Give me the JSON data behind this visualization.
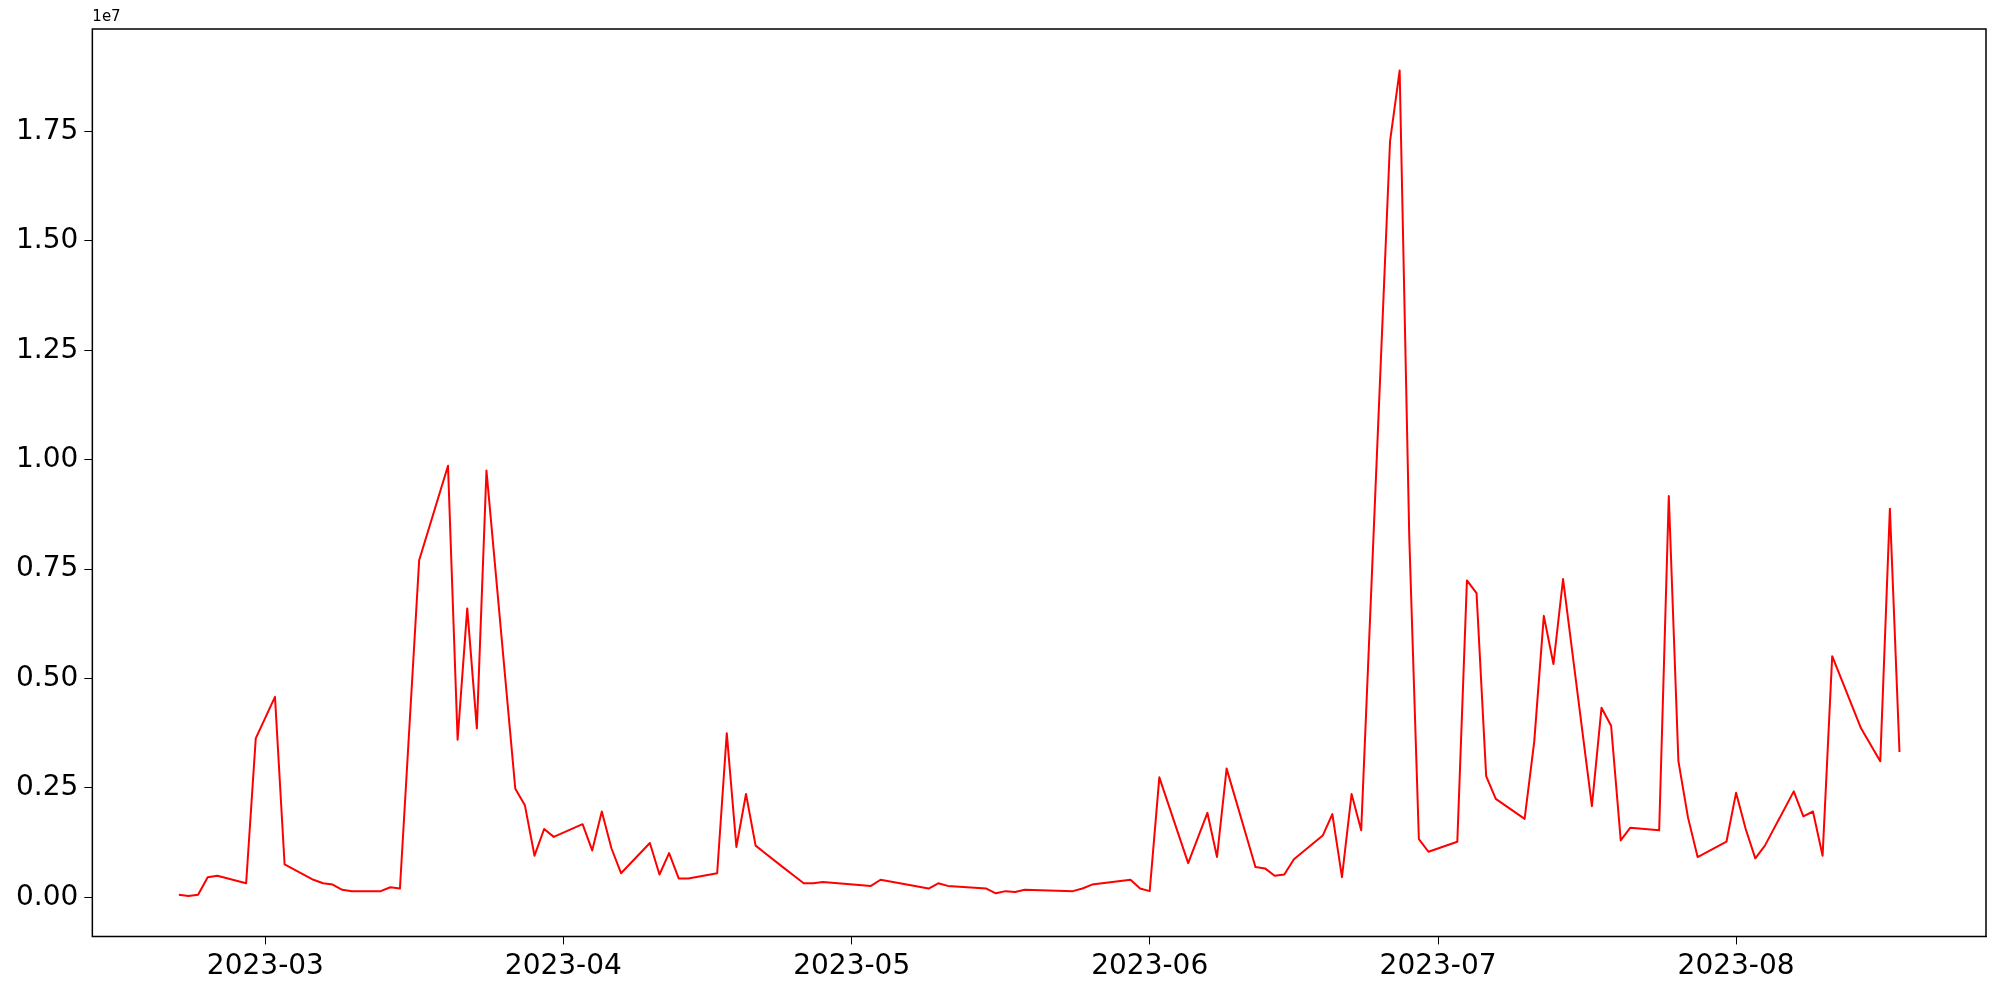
{
  "chart_data": {
    "type": "line",
    "annotations": [
      "1e7"
    ],
    "x": [
      "2023-02-20",
      "2023-02-21",
      "2023-02-22",
      "2023-02-23",
      "2023-02-24",
      "2023-02-27",
      "2023-02-28",
      "2023-03-02",
      "2023-03-03",
      "2023-03-06",
      "2023-03-07",
      "2023-03-08",
      "2023-03-09",
      "2023-03-10",
      "2023-03-13",
      "2023-03-14",
      "2023-03-15",
      "2023-03-17",
      "2023-03-20",
      "2023-03-21",
      "2023-03-22",
      "2023-03-23",
      "2023-03-24",
      "2023-03-27",
      "2023-03-28",
      "2023-03-29",
      "2023-03-30",
      "2023-03-31",
      "2023-04-03",
      "2023-04-04",
      "2023-04-05",
      "2023-04-06",
      "2023-04-07",
      "2023-04-10",
      "2023-04-11",
      "2023-04-12",
      "2023-04-13",
      "2023-04-14",
      "2023-04-17",
      "2023-04-18",
      "2023-04-19",
      "2023-04-20",
      "2023-04-21",
      "2023-04-24",
      "2023-04-25",
      "2023-04-26",
      "2023-04-27",
      "2023-04-28",
      "2023-05-03",
      "2023-05-04",
      "2023-05-09",
      "2023-05-10",
      "2023-05-11",
      "2023-05-15",
      "2023-05-16",
      "2023-05-17",
      "2023-05-18",
      "2023-05-19",
      "2023-05-24",
      "2023-05-25",
      "2023-05-26",
      "2023-05-30",
      "2023-05-31",
      "2023-06-01",
      "2023-06-02",
      "2023-06-05",
      "2023-06-07",
      "2023-06-08",
      "2023-06-09",
      "2023-06-12",
      "2023-06-13",
      "2023-06-14",
      "2023-06-15",
      "2023-06-16",
      "2023-06-19",
      "2023-06-20",
      "2023-06-21",
      "2023-06-22",
      "2023-06-23",
      "2023-06-26",
      "2023-06-27",
      "2023-06-28",
      "2023-06-29",
      "2023-06-30",
      "2023-07-03",
      "2023-07-04",
      "2023-07-05",
      "2023-07-06",
      "2023-07-07",
      "2023-07-10",
      "2023-07-11",
      "2023-07-12",
      "2023-07-13",
      "2023-07-14",
      "2023-07-17",
      "2023-07-18",
      "2023-07-19",
      "2023-07-20",
      "2023-07-21",
      "2023-07-24",
      "2023-07-25",
      "2023-07-26",
      "2023-07-27",
      "2023-07-28",
      "2023-07-31",
      "2023-08-01",
      "2023-08-02",
      "2023-08-03",
      "2023-08-04",
      "2023-08-07",
      "2023-08-08",
      "2023-08-09",
      "2023-08-10",
      "2023-08-11",
      "2023-08-14",
      "2023-08-16",
      "2023-08-17",
      "2023-08-18"
    ],
    "series": [
      {
        "color": "#ff0000",
        "values": [
          0.006,
          0.003,
          0.006,
          0.046,
          0.049,
          0.032,
          0.363,
          0.458,
          0.075,
          0.04,
          0.032,
          0.029,
          0.017,
          0.014,
          0.014,
          0.023,
          0.02,
          0.77,
          0.986,
          0.36,
          0.66,
          0.386,
          0.975,
          0.248,
          0.21,
          0.095,
          0.156,
          0.138,
          0.167,
          0.107,
          0.196,
          0.112,
          0.055,
          0.124,
          0.052,
          0.101,
          0.043,
          0.043,
          0.055,
          0.375,
          0.115,
          0.236,
          0.118,
          0.066,
          0.049,
          0.032,
          0.032,
          0.035,
          0.026,
          0.04,
          0.02,
          0.032,
          0.026,
          0.02,
          0.009,
          0.014,
          0.012,
          0.017,
          0.014,
          0.02,
          0.029,
          0.04,
          0.02,
          0.014,
          0.274,
          0.078,
          0.193,
          0.092,
          0.294,
          0.069,
          0.066,
          0.049,
          0.052,
          0.087,
          0.141,
          0.19,
          0.046,
          0.236,
          0.153,
          1.727,
          1.889,
          0.825,
          0.133,
          0.104,
          0.127,
          0.724,
          0.695,
          0.277,
          0.225,
          0.179,
          0.355,
          0.643,
          0.533,
          0.727,
          0.208,
          0.433,
          0.392,
          0.13,
          0.159,
          0.153,
          0.917,
          0.311,
          0.182,
          0.092,
          0.127,
          0.239,
          0.156,
          0.089,
          0.118,
          0.242,
          0.185,
          0.196,
          0.095,
          0.551,
          0.386,
          0.311,
          0.888,
          0.332
        ]
      }
    ],
    "xlim": [
      "2023-02-11",
      "2023-08-27"
    ],
    "xticks": [
      "2023-03",
      "2023-04",
      "2023-05",
      "2023-06",
      "2023-07",
      "2023-08"
    ],
    "ylim": [
      -0.0894,
      1.984
    ],
    "yticks": [
      {
        "value": 0,
        "label": "0.00"
      },
      0.25,
      {
        "value": 0.5,
        "label": "0.50"
      },
      0.75,
      {
        "value": 1,
        "label": "1.00"
      },
      1.25,
      {
        "value": 1.5,
        "label": "1.50"
      },
      1.75
    ],
    "grid": false,
    "legend": false,
    "marker": "none",
    "line_style": "solid"
  }
}
